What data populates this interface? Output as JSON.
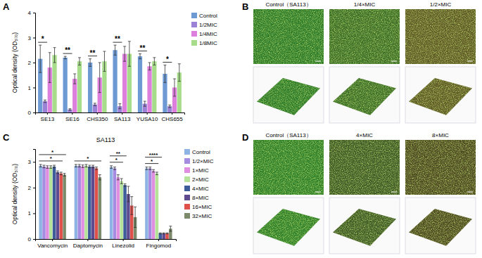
{
  "chart_data": [
    {
      "panel": "A",
      "type": "bar",
      "y_label": "Optical density (OD₅₇₀)",
      "categories": [
        "SE13",
        "SE16",
        "CHS350",
        "SA113",
        "YUSA10",
        "CHS655"
      ],
      "series": [
        {
          "name": "Control",
          "color": "#6d9ad3",
          "values": [
            2.15,
            2.2,
            2.0,
            2.5,
            2.25,
            1.55
          ],
          "errors": [
            0.55,
            0.05,
            0.15,
            0.2,
            0.1,
            0.35
          ]
        },
        {
          "name": "1/2MIC",
          "color": "#9b82d6",
          "values": [
            0.45,
            0.12,
            0.32,
            0.25,
            0.35,
            0.25
          ],
          "errors": [
            0.05,
            0.03,
            0.05,
            0.1,
            0.1,
            0.05
          ]
        },
        {
          "name": "1/4MIC",
          "color": "#dd7fdd",
          "values": [
            1.8,
            1.35,
            1.4,
            2.35,
            1.85,
            1.0
          ],
          "errors": [
            0.6,
            0.2,
            0.6,
            0.3,
            0.15,
            0.35
          ]
        },
        {
          "name": "1/8MIC",
          "color": "#a6dc8a",
          "values": [
            2.3,
            2.05,
            2.05,
            2.35,
            2.05,
            1.6
          ],
          "errors": [
            0.3,
            0.15,
            0.4,
            0.5,
            0.15,
            0.35
          ]
        }
      ],
      "ylim": [
        0,
        4
      ],
      "yticks": [
        0,
        1,
        2,
        3,
        4
      ],
      "legend": "right",
      "significance": [
        "*",
        "**",
        "**",
        "**",
        "**",
        "*"
      ]
    },
    {
      "panel": "C",
      "type": "bar",
      "title": "SA113",
      "y_label": "Optical density (OD₅₇₀)",
      "categories": [
        "Vancomycin",
        "Daptomycin",
        "Linezolid",
        "Fingomod"
      ],
      "series": [
        {
          "name": "Control",
          "color": "#8fb4e3",
          "values": [
            2.85,
            2.85,
            2.8,
            2.75
          ],
          "errors": [
            0.05,
            0.05,
            0.05,
            0.05
          ]
        },
        {
          "name": "1/2×MIC",
          "color": "#a58ce0",
          "values": [
            2.82,
            2.85,
            2.75,
            2.75
          ],
          "errors": [
            0.05,
            0.05,
            0.05,
            0.05
          ]
        },
        {
          "name": "1×MIC",
          "color": "#e08fe0",
          "values": [
            2.8,
            2.83,
            2.4,
            2.65
          ],
          "errors": [
            0.05,
            0.05,
            0.1,
            0.05
          ]
        },
        {
          "name": "2×MIC",
          "color": "#b6e39a",
          "values": [
            2.8,
            2.85,
            2.25,
            2.55
          ],
          "errors": [
            0.05,
            0.05,
            0.1,
            0.05
          ]
        },
        {
          "name": "4×MIC",
          "color": "#3e5c9a",
          "values": [
            2.82,
            2.82,
            2.1,
            0.22
          ],
          "errors": [
            0.05,
            0.05,
            0.05,
            0.02
          ]
        },
        {
          "name": "8×MIC",
          "color": "#5e4a8e",
          "values": [
            2.6,
            2.82,
            1.75,
            0.22
          ],
          "errors": [
            0.05,
            0.05,
            0.3,
            0.02
          ]
        },
        {
          "name": "16×MIC",
          "color": "#e0504a",
          "values": [
            2.55,
            2.75,
            1.3,
            0.22
          ],
          "errors": [
            0.05,
            0.05,
            0.35,
            0.02
          ]
        },
        {
          "name": "32×MIC",
          "color": "#7a8a6a",
          "values": [
            2.5,
            2.4,
            0.85,
            0.4
          ],
          "errors": [
            0.05,
            0.1,
            0.4,
            0.1
          ]
        }
      ],
      "ylim": [
        0,
        3.5
      ],
      "yticks": [
        0,
        1,
        2,
        3
      ],
      "legend": "right",
      "comparisons": [
        {
          "category": "Vancomycin",
          "from": "Control",
          "to": "16×MIC",
          "label": "*"
        },
        {
          "category": "Vancomycin",
          "from": "Control",
          "to": "32×MIC",
          "label": "*"
        },
        {
          "category": "Daptomycin",
          "from": "Control",
          "to": "32×MIC",
          "label": "*"
        },
        {
          "category": "Linezolid",
          "from": "Control",
          "to": "2×MIC",
          "label": "*"
        },
        {
          "category": "Linezolid",
          "from": "Control",
          "to": "4×MIC",
          "label": "**"
        },
        {
          "category": "Fingomod",
          "from": "Control",
          "to": "2×MIC",
          "label": "*"
        },
        {
          "category": "Fingomod",
          "from": "Control",
          "to": "4×MIC",
          "label": "****"
        }
      ]
    }
  ],
  "image_panels": [
    {
      "panel": "B",
      "titles": [
        "Control（SA113）",
        "1/4×MIC",
        "1/2×MIC"
      ]
    },
    {
      "panel": "D",
      "titles": [
        "Control（SA113）",
        "4×MIC",
        "8×MIC"
      ]
    }
  ]
}
